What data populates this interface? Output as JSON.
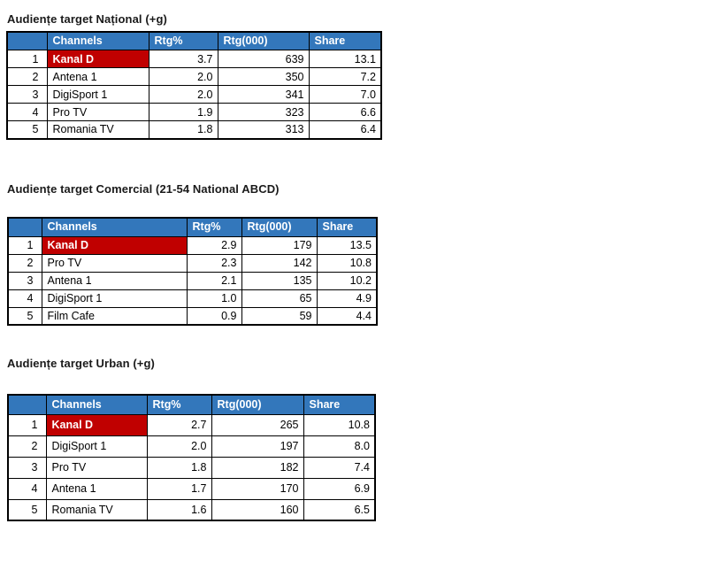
{
  "colors": {
    "header_bg": "#3377BB",
    "header_text": "#FFFFFF",
    "highlight_bg": "#C00000",
    "highlight_text": "#FFFFFF",
    "table_border": "#000000",
    "title_text": "#1A1A1A",
    "page_bg": "#FFFFFF"
  },
  "columns": {
    "rank": "",
    "channels": "Channels",
    "rtg_pct": "Rtg%",
    "rtg_000": "Rtg(000)",
    "share": "Share"
  },
  "tables": [
    {
      "id": "national",
      "title": "Audiențe target Național (+g)",
      "rows": [
        {
          "rank": "1",
          "channel": "Kanal D",
          "rtg_pct": "3.7",
          "rtg_000": "639",
          "share": "13.1",
          "highlight": true
        },
        {
          "rank": "2",
          "channel": "Antena 1",
          "rtg_pct": "2.0",
          "rtg_000": "350",
          "share": "7.2",
          "highlight": false
        },
        {
          "rank": "3",
          "channel": "DigiSport 1",
          "rtg_pct": "2.0",
          "rtg_000": "341",
          "share": "7.0",
          "highlight": false
        },
        {
          "rank": "4",
          "channel": "Pro TV",
          "rtg_pct": "1.9",
          "rtg_000": "323",
          "share": "6.6",
          "highlight": false
        },
        {
          "rank": "5",
          "channel": "Romania TV",
          "rtg_pct": "1.8",
          "rtg_000": "313",
          "share": "6.4",
          "highlight": false
        }
      ]
    },
    {
      "id": "comercial",
      "title": "Audiențe target Comercial (21-54 National ABCD)",
      "rows": [
        {
          "rank": "1",
          "channel": "Kanal D",
          "rtg_pct": "2.9",
          "rtg_000": "179",
          "share": "13.5",
          "highlight": true
        },
        {
          "rank": "2",
          "channel": "Pro TV",
          "rtg_pct": "2.3",
          "rtg_000": "142",
          "share": "10.8",
          "highlight": false
        },
        {
          "rank": "3",
          "channel": "Antena 1",
          "rtg_pct": "2.1",
          "rtg_000": "135",
          "share": "10.2",
          "highlight": false
        },
        {
          "rank": "4",
          "channel": "DigiSport 1",
          "rtg_pct": "1.0",
          "rtg_000": "65",
          "share": "4.9",
          "highlight": false
        },
        {
          "rank": "5",
          "channel": "Film Cafe",
          "rtg_pct": "0.9",
          "rtg_000": "59",
          "share": "4.4",
          "highlight": false
        }
      ]
    },
    {
      "id": "urban",
      "title": "Audiențe target Urban (+g)",
      "rows": [
        {
          "rank": "1",
          "channel": "Kanal D",
          "rtg_pct": "2.7",
          "rtg_000": "265",
          "share": "10.8",
          "highlight": true
        },
        {
          "rank": "2",
          "channel": "DigiSport 1",
          "rtg_pct": "2.0",
          "rtg_000": "197",
          "share": "8.0",
          "highlight": false
        },
        {
          "rank": "3",
          "channel": "Pro TV",
          "rtg_pct": "1.8",
          "rtg_000": "182",
          "share": "7.4",
          "highlight": false
        },
        {
          "rank": "4",
          "channel": "Antena 1",
          "rtg_pct": "1.7",
          "rtg_000": "170",
          "share": "6.9",
          "highlight": false
        },
        {
          "rank": "5",
          "channel": "Romania TV",
          "rtg_pct": "1.6",
          "rtg_000": "160",
          "share": "6.5",
          "highlight": false
        }
      ]
    }
  ]
}
